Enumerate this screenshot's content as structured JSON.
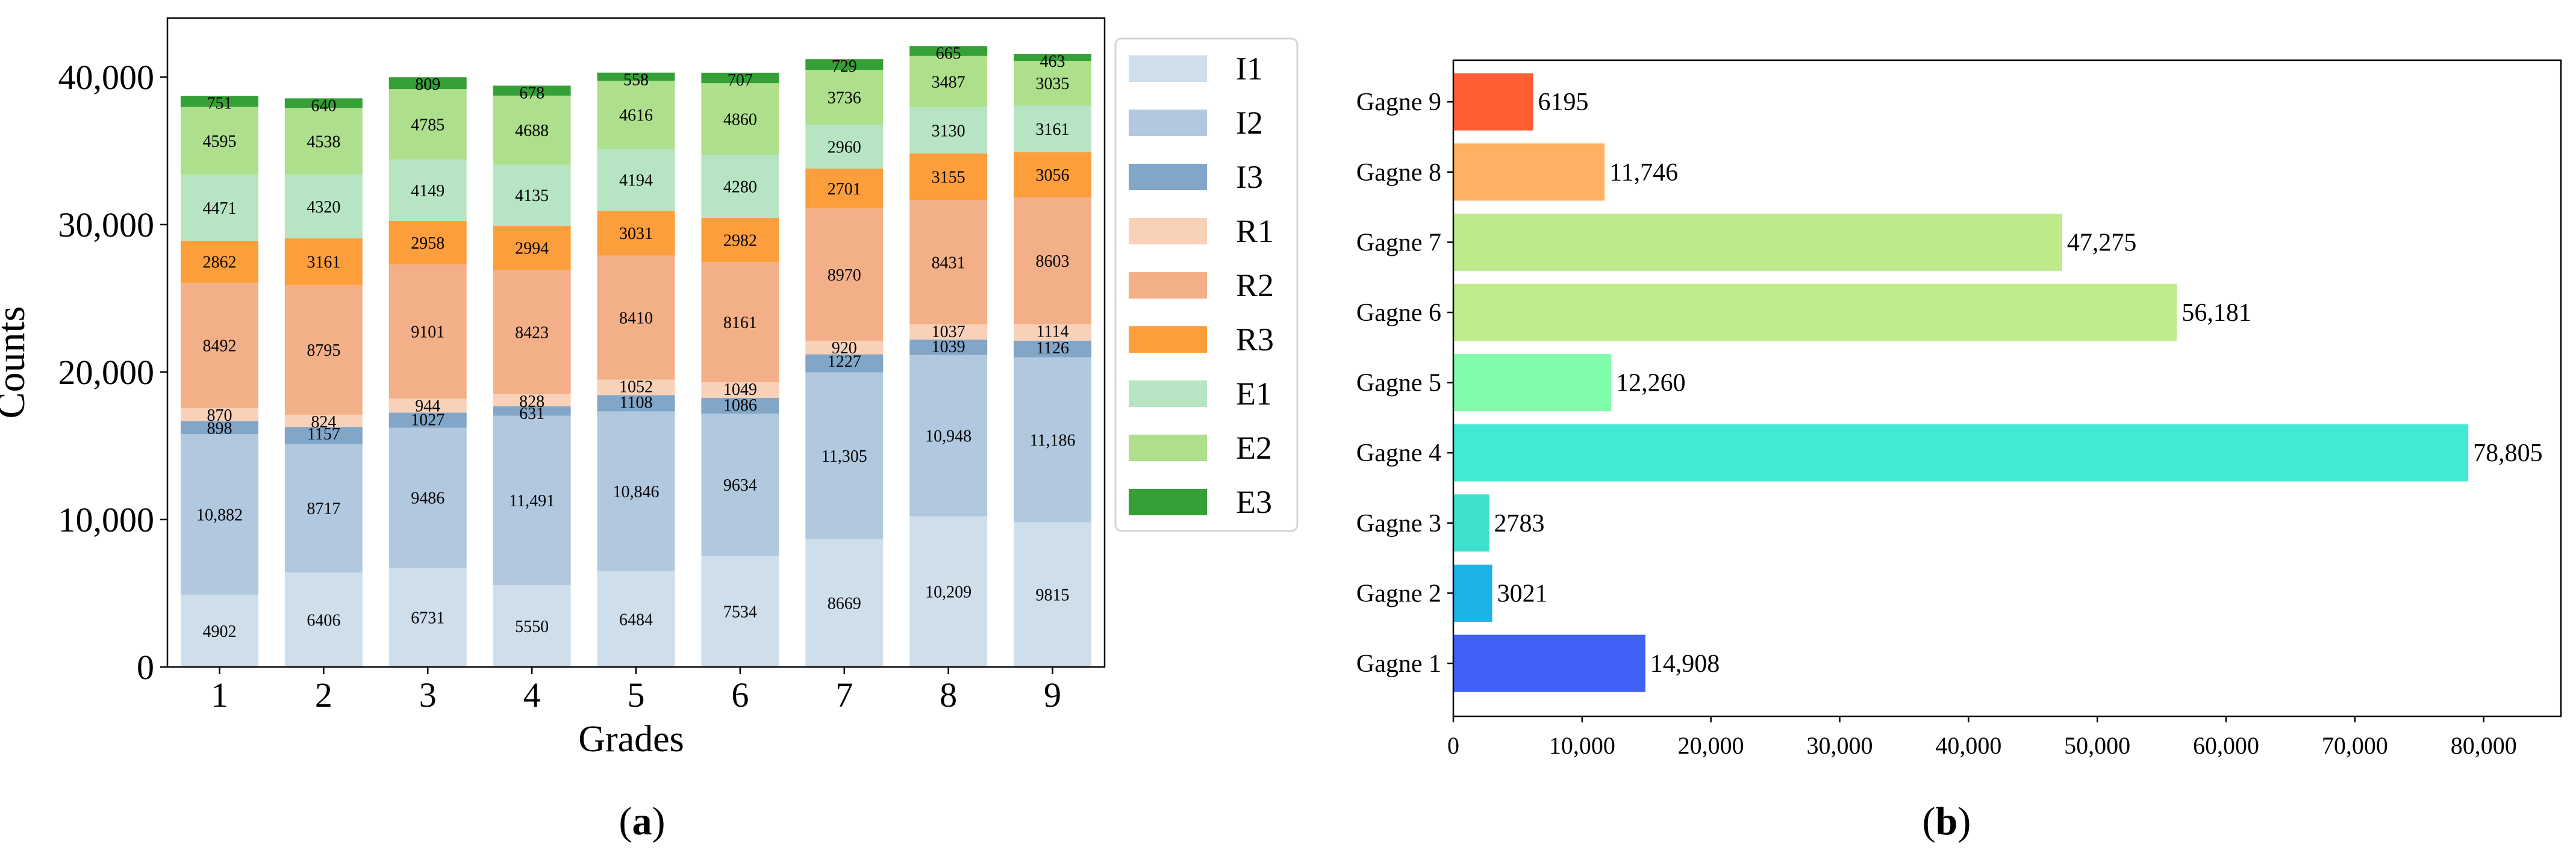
{
  "chart_data": [
    {
      "type": "bar",
      "stacked": true,
      "panel_label": "(a)",
      "panel_letter": "a",
      "xlabel": "Grades",
      "ylabel": "Counts",
      "categories": [
        "1",
        "2",
        "3",
        "4",
        "5",
        "6",
        "7",
        "8",
        "9"
      ],
      "ylim": [
        0,
        44000
      ],
      "yticks": [
        0,
        10000,
        20000,
        30000,
        40000
      ],
      "ytick_labels": [
        "0",
        "10,000",
        "20,000",
        "30,000",
        "40,000"
      ],
      "legend_position": "right-outside",
      "series": [
        {
          "name": "I1",
          "color": "#cfdeeb",
          "values": [
            4902,
            6406,
            6731,
            5550,
            6484,
            7534,
            8669,
            10209,
            9815
          ],
          "labels": [
            "4902",
            "6406",
            "6731",
            "5550",
            "6484",
            "7534",
            "8669",
            "10,209",
            "9815"
          ]
        },
        {
          "name": "I2",
          "color": "#b1c8de",
          "values": [
            10882,
            8717,
            9486,
            11491,
            10846,
            9634,
            11305,
            10948,
            11186
          ],
          "labels": [
            "10,882",
            "8717",
            "9486",
            "11,491",
            "10,846",
            "9634",
            "11,305",
            "10,948",
            "11,186"
          ]
        },
        {
          "name": "I3",
          "color": "#82a6c8",
          "values": [
            898,
            1157,
            1027,
            631,
            1108,
            1086,
            1227,
            1039,
            1126
          ],
          "labels": [
            "898",
            "1157",
            "1027",
            "631",
            "1108",
            "1086",
            "1227",
            "1039",
            "1126"
          ]
        },
        {
          "name": "R1",
          "color": "#f8d1b8",
          "values": [
            870,
            824,
            944,
            828,
            1052,
            1049,
            920,
            1037,
            1114
          ],
          "labels": [
            "870",
            "824",
            "944",
            "828",
            "1052",
            "1049",
            "920",
            "1037",
            "1114"
          ]
        },
        {
          "name": "R2",
          "color": "#f3b088",
          "values": [
            8492,
            8795,
            9101,
            8423,
            8410,
            8161,
            8970,
            8431,
            8603
          ],
          "labels": [
            "8492",
            "8795",
            "9101",
            "8423",
            "8410",
            "8161",
            "8970",
            "8431",
            "8603"
          ]
        },
        {
          "name": "R3",
          "color": "#fd9e3d",
          "values": [
            2862,
            3161,
            2958,
            2994,
            3031,
            2982,
            2701,
            3155,
            3056
          ],
          "labels": [
            "2862",
            "3161",
            "2958",
            "2994",
            "3031",
            "2982",
            "2701",
            "3155",
            "3056"
          ]
        },
        {
          "name": "E1",
          "color": "#b7e5c3",
          "values": [
            4471,
            4320,
            4149,
            4135,
            4194,
            4280,
            2960,
            3130,
            3161
          ],
          "labels": [
            "4471",
            "4320",
            "4149",
            "4135",
            "4194",
            "4280",
            "2960",
            "3130",
            "3161"
          ]
        },
        {
          "name": "E2",
          "color": "#addf8c",
          "values": [
            4595,
            4538,
            4785,
            4688,
            4616,
            4860,
            3736,
            3487,
            3035
          ],
          "labels": [
            "4595",
            "4538",
            "4785",
            "4688",
            "4616",
            "4860",
            "3736",
            "3487",
            "3035"
          ]
        },
        {
          "name": "E3",
          "color": "#35a035",
          "values": [
            751,
            640,
            809,
            678,
            558,
            707,
            729,
            665,
            463
          ],
          "labels": [
            "751",
            "640",
            "809",
            "678",
            "558",
            "707",
            "729",
            "665",
            "463"
          ]
        }
      ]
    },
    {
      "type": "bar",
      "orientation": "horizontal",
      "panel_label": "(b)",
      "panel_letter": "b",
      "categories": [
        "Gagne 1",
        "Gagne 2",
        "Gagne 3",
        "Gagne 4",
        "Gagne 5",
        "Gagne 6",
        "Gagne 7",
        "Gagne 8",
        "Gagne 9"
      ],
      "values": [
        14908,
        3021,
        2783,
        78805,
        12260,
        56181,
        47275,
        11746,
        6195
      ],
      "value_labels": [
        "14,908",
        "3021",
        "2783",
        "78,805",
        "12,260",
        "56,181",
        "47,275",
        "11,746",
        "6195"
      ],
      "colors": [
        "#4060f7",
        "#1eb1e6",
        "#40e0cf",
        "#41ead4",
        "#80fcab",
        "#c0eb8c",
        "#bfea8b",
        "#feb163",
        "#ff5d34"
      ],
      "xlim": [
        0,
        86000
      ],
      "xticks": [
        0,
        10000,
        20000,
        30000,
        40000,
        50000,
        60000,
        70000,
        80000
      ],
      "xtick_labels": [
        "0",
        "10,000",
        "20,000",
        "30,000",
        "40,000",
        "50,000",
        "60,000",
        "70,000",
        "80,000"
      ]
    }
  ]
}
